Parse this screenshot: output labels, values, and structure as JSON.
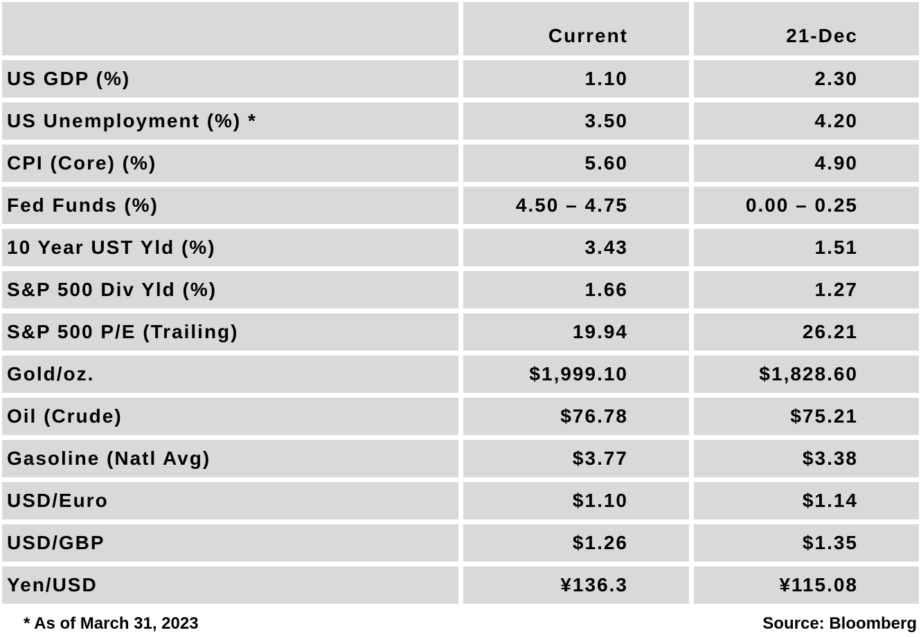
{
  "header": {
    "label": "",
    "current": "Current",
    "dec": "21-Dec"
  },
  "rows": [
    {
      "label": "US GDP (%)",
      "current": "1.10",
      "dec": "2.30"
    },
    {
      "label": "US Unemployment (%) *",
      "current": "3.50",
      "dec": "4.20"
    },
    {
      "label": "CPI (Core) (%)",
      "current": "5.60",
      "dec": "4.90"
    },
    {
      "label": "Fed Funds (%)",
      "current": "4.50 – 4.75",
      "dec": "0.00 – 0.25"
    },
    {
      "label": "10 Year UST Yld (%)",
      "current": "3.43",
      "dec": "1.51"
    },
    {
      "label": "S&P 500 Div Yld (%)",
      "current": "1.66",
      "dec": "1.27"
    },
    {
      "label": "S&P 500 P/E (Trailing)",
      "current": "19.94",
      "dec": "26.21"
    },
    {
      "label": "Gold/oz.",
      "current": "$1,999.10",
      "dec": "$1,828.60"
    },
    {
      "label": "Oil (Crude)",
      "current": "$76.78",
      "dec": "$75.21"
    },
    {
      "label": "Gasoline (Natl Avg)",
      "current": "$3.77",
      "dec": "$3.38"
    },
    {
      "label": "USD/Euro",
      "current": "$1.10",
      "dec": "$1.14"
    },
    {
      "label": "USD/GBP",
      "current": "$1.26",
      "dec": "$1.35"
    },
    {
      "label": "Yen/USD",
      "current": "¥136.3",
      "dec": "¥115.08"
    }
  ],
  "footer": {
    "note": "* As of March 31, 2023",
    "source": "Source: Bloomberg"
  }
}
